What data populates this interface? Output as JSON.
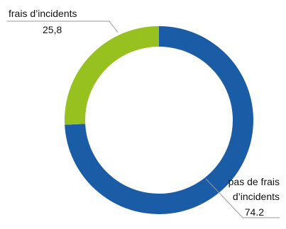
{
  "chart_data": {
    "type": "pie",
    "style": "donut",
    "slices": [
      {
        "label_lines": [
          "pas de frais",
          "d’incidents"
        ],
        "value_label": "74.2",
        "value": 74.2,
        "color": "#1a5ca5"
      },
      {
        "label_lines": [
          "frais d’incidents"
        ],
        "value_label": "25,8",
        "value": 25.8,
        "color": "#96c11f"
      }
    ],
    "leader_line_color": "#9a9a9a",
    "legend": "none"
  }
}
